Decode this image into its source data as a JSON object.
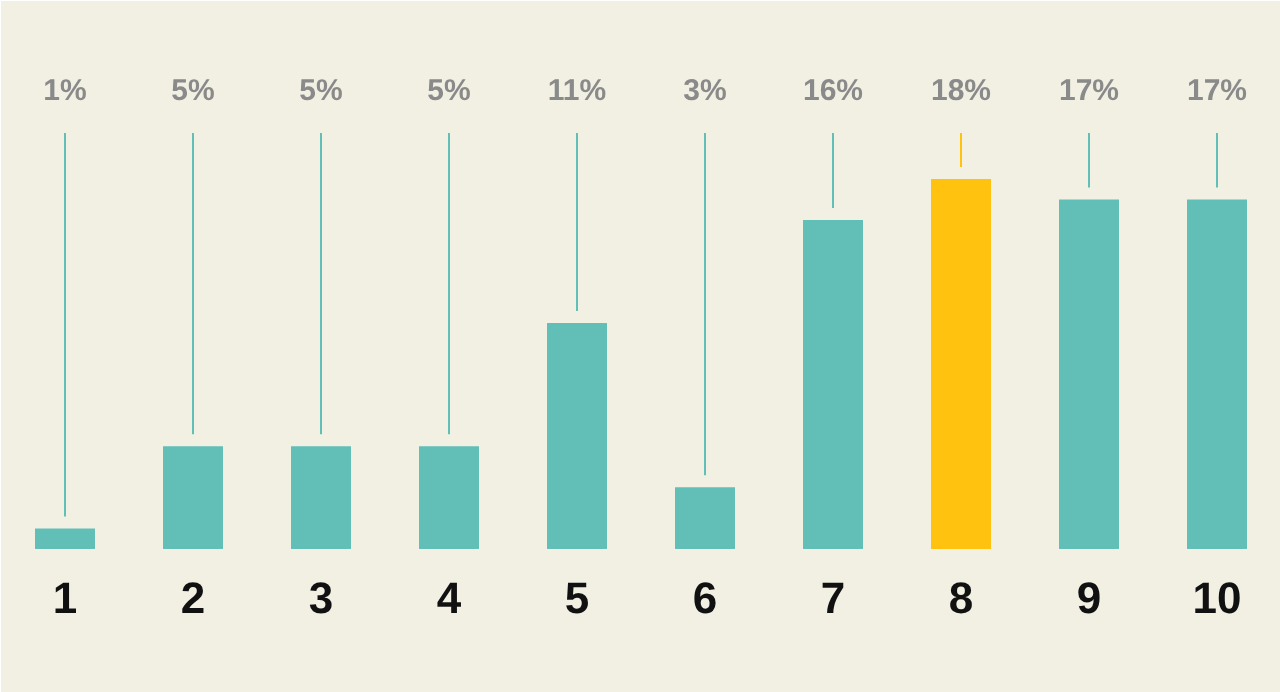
{
  "chart_data": {
    "type": "bar",
    "categories": [
      "1",
      "2",
      "3",
      "4",
      "5",
      "6",
      "7",
      "8",
      "9",
      "10"
    ],
    "values": [
      1,
      5,
      5,
      5,
      11,
      3,
      16,
      18,
      17,
      17
    ],
    "value_labels": [
      "1%",
      "5%",
      "5%",
      "5%",
      "11%",
      "3%",
      "16%",
      "18%",
      "17%",
      "17%"
    ],
    "colors": [
      "#62bfb8",
      "#62bfb8",
      "#62bfb8",
      "#62bfb8",
      "#62bfb8",
      "#62bfb8",
      "#62bfb8",
      "#ffc20e",
      "#62bfb8",
      "#62bfb8"
    ],
    "grid": "x"
  }
}
